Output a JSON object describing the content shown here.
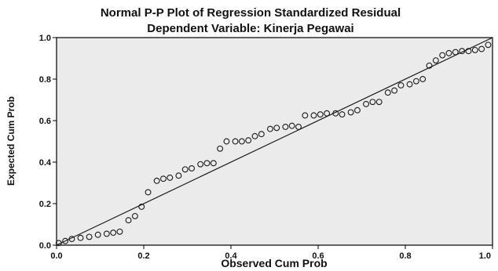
{
  "chart_data": {
    "type": "scatter",
    "title": "Normal P-P Plot of Regression Standardized Residual",
    "subtitle": "Dependent Variable: Kinerja Pegawai",
    "xlabel": "Observed Cum Prob",
    "ylabel": "Expected Cum Prob",
    "xlim": [
      0,
      1
    ],
    "ylim": [
      0,
      1
    ],
    "x_ticks": [
      "0.0",
      "0.2",
      "0.4",
      "0.6",
      "0.8",
      "1.0"
    ],
    "y_ticks": [
      "0.0",
      "0.2",
      "0.4",
      "0.6",
      "0.8",
      "1.0"
    ],
    "grid": false,
    "legend": "none",
    "background_color": "#ebebeb",
    "point_color": "#1a1a1a",
    "reference_line": {
      "from": [
        0,
        0
      ],
      "to": [
        1,
        1
      ],
      "color": "#1a1a1a"
    },
    "points": {
      "x": [
        0.005,
        0.02,
        0.035,
        0.055,
        0.075,
        0.095,
        0.115,
        0.13,
        0.145,
        0.165,
        0.18,
        0.195,
        0.21,
        0.23,
        0.245,
        0.26,
        0.28,
        0.295,
        0.31,
        0.33,
        0.345,
        0.36,
        0.375,
        0.39,
        0.41,
        0.425,
        0.44,
        0.455,
        0.47,
        0.49,
        0.505,
        0.525,
        0.54,
        0.555,
        0.57,
        0.59,
        0.605,
        0.62,
        0.64,
        0.655,
        0.675,
        0.69,
        0.71,
        0.725,
        0.74,
        0.76,
        0.775,
        0.79,
        0.81,
        0.825,
        0.84,
        0.855,
        0.87,
        0.885,
        0.9,
        0.915,
        0.93,
        0.945,
        0.96,
        0.975,
        0.99
      ],
      "y": [
        0.01,
        0.02,
        0.03,
        0.035,
        0.04,
        0.05,
        0.055,
        0.06,
        0.065,
        0.12,
        0.14,
        0.185,
        0.255,
        0.31,
        0.32,
        0.325,
        0.335,
        0.365,
        0.37,
        0.39,
        0.395,
        0.395,
        0.465,
        0.5,
        0.5,
        0.5,
        0.505,
        0.525,
        0.535,
        0.56,
        0.565,
        0.57,
        0.575,
        0.57,
        0.625,
        0.625,
        0.63,
        0.635,
        0.635,
        0.63,
        0.64,
        0.65,
        0.68,
        0.69,
        0.69,
        0.735,
        0.745,
        0.77,
        0.775,
        0.79,
        0.8,
        0.865,
        0.89,
        0.915,
        0.925,
        0.93,
        0.935,
        0.935,
        0.94,
        0.945,
        0.965
      ]
    }
  }
}
